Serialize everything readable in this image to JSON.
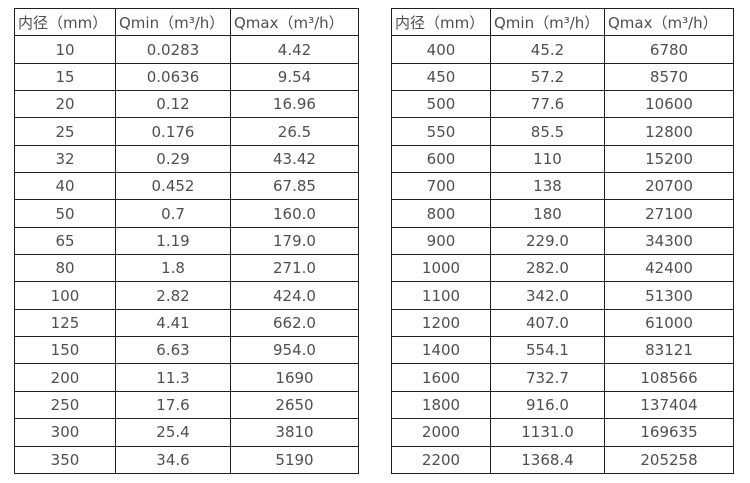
{
  "colors": {
    "background": "#ffffff",
    "table_border": "#1f1f1f",
    "text": "#4f4f4f"
  },
  "chart_data": [
    {
      "type": "table",
      "columns": [
        "内径（mm）",
        "Qmin（m³/h）",
        "Qmax（m³/h）"
      ],
      "rows": [
        [
          "10",
          "0.0283",
          "4.42"
        ],
        [
          "15",
          "0.0636",
          "9.54"
        ],
        [
          "20",
          "0.12",
          "16.96"
        ],
        [
          "25",
          "0.176",
          "26.5"
        ],
        [
          "32",
          "0.29",
          "43.42"
        ],
        [
          "40",
          "0.452",
          "67.85"
        ],
        [
          "50",
          "0.7",
          "160.0"
        ],
        [
          "65",
          "1.19",
          "179.0"
        ],
        [
          "80",
          "1.8",
          "271.0"
        ],
        [
          "100",
          "2.82",
          "424.0"
        ],
        [
          "125",
          "4.41",
          "662.0"
        ],
        [
          "150",
          "6.63",
          "954.0"
        ],
        [
          "200",
          "11.3",
          "1690"
        ],
        [
          "250",
          "17.6",
          "2650"
        ],
        [
          "300",
          "25.4",
          "3810"
        ],
        [
          "350",
          "34.6",
          "5190"
        ]
      ]
    },
    {
      "type": "table",
      "columns": [
        "内径（mm）",
        "Qmin（m³/h）",
        "Qmax（m³/h）"
      ],
      "rows": [
        [
          "400",
          "45.2",
          "6780"
        ],
        [
          "450",
          "57.2",
          "8570"
        ],
        [
          "500",
          "77.6",
          "10600"
        ],
        [
          "550",
          "85.5",
          "12800"
        ],
        [
          "600",
          "110",
          "15200"
        ],
        [
          "700",
          "138",
          "20700"
        ],
        [
          "800",
          "180",
          "27100"
        ],
        [
          "900",
          "229.0",
          "34300"
        ],
        [
          "1000",
          "282.0",
          "42400"
        ],
        [
          "1100",
          "342.0",
          "51300"
        ],
        [
          "1200",
          "407.0",
          "61000"
        ],
        [
          "1400",
          "554.1",
          "83121"
        ],
        [
          "1600",
          "732.7",
          "108566"
        ],
        [
          "1800",
          "916.0",
          "137404"
        ],
        [
          "2000",
          "1131.0",
          "169635"
        ],
        [
          "2200",
          "1368.4",
          "205258"
        ]
      ]
    }
  ]
}
